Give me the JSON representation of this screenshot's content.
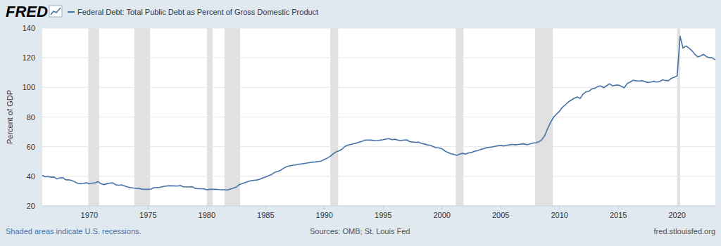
{
  "chart_data": {
    "type": "line",
    "logo": "FRED",
    "ylabel": "Percent of GDP",
    "footnote": "Shaded areas indicate U.S. recessions.",
    "source": "Sources: OMB; St. Louis Fed",
    "credit": "fred.stlouisfed.org",
    "legend": "top",
    "grid": true,
    "xlim": [
      1966,
      2023.25
    ],
    "xticks": [
      1970,
      1975,
      1980,
      1985,
      1990,
      1995,
      2000,
      2005,
      2010,
      2015,
      2020
    ],
    "ylim": [
      20,
      140
    ],
    "yticks": [
      20,
      40,
      60,
      80,
      100,
      120,
      140
    ],
    "recessions": [
      [
        1969.92,
        1970.83
      ],
      [
        1973.83,
        1975.17
      ],
      [
        1980.0,
        1980.5
      ],
      [
        1981.5,
        1982.83
      ],
      [
        1990.5,
        1991.17
      ],
      [
        2001.17,
        2001.83
      ],
      [
        2007.92,
        2009.42
      ],
      [
        2020.0,
        2020.25
      ]
    ],
    "x": [
      1966,
      1966.25,
      1966.5,
      1966.75,
      1967,
      1967.25,
      1967.5,
      1967.75,
      1968,
      1968.25,
      1968.5,
      1968.75,
      1969,
      1969.25,
      1969.5,
      1969.75,
      1970,
      1970.25,
      1970.5,
      1970.75,
      1971,
      1971.25,
      1971.5,
      1971.75,
      1972,
      1972.25,
      1972.5,
      1972.75,
      1973,
      1973.25,
      1973.5,
      1973.75,
      1974,
      1974.25,
      1974.5,
      1974.75,
      1975,
      1975.25,
      1975.5,
      1975.75,
      1976,
      1976.25,
      1976.5,
      1976.75,
      1977,
      1977.25,
      1977.5,
      1977.75,
      1978,
      1978.25,
      1978.5,
      1978.75,
      1979,
      1979.25,
      1979.5,
      1979.75,
      1980,
      1980.25,
      1980.5,
      1980.75,
      1981,
      1981.25,
      1981.5,
      1981.75,
      1982,
      1982.25,
      1982.5,
      1982.75,
      1983,
      1983.25,
      1983.5,
      1983.75,
      1984,
      1984.25,
      1984.5,
      1984.75,
      1985,
      1985.25,
      1985.5,
      1985.75,
      1986,
      1986.25,
      1986.5,
      1986.75,
      1987,
      1987.25,
      1987.5,
      1987.75,
      1988,
      1988.25,
      1988.5,
      1988.75,
      1989,
      1989.25,
      1989.5,
      1989.75,
      1990,
      1990.25,
      1990.5,
      1990.75,
      1991,
      1991.25,
      1991.5,
      1991.75,
      1992,
      1992.25,
      1992.5,
      1992.75,
      1993,
      1993.25,
      1993.5,
      1993.75,
      1994,
      1994.25,
      1994.5,
      1994.75,
      1995,
      1995.25,
      1995.5,
      1995.75,
      1996,
      1996.25,
      1996.5,
      1996.75,
      1997,
      1997.25,
      1997.5,
      1997.75,
      1998,
      1998.25,
      1998.5,
      1998.75,
      1999,
      1999.25,
      1999.5,
      1999.75,
      2000,
      2000.25,
      2000.5,
      2000.75,
      2001,
      2001.25,
      2001.5,
      2001.75,
      2002,
      2002.25,
      2002.5,
      2002.75,
      2003,
      2003.25,
      2003.5,
      2003.75,
      2004,
      2004.25,
      2004.5,
      2004.75,
      2005,
      2005.25,
      2005.5,
      2005.75,
      2006,
      2006.25,
      2006.5,
      2006.75,
      2007,
      2007.25,
      2007.5,
      2007.75,
      2008,
      2008.25,
      2008.5,
      2008.75,
      2009,
      2009.25,
      2009.5,
      2009.75,
      2010,
      2010.25,
      2010.5,
      2010.75,
      2011,
      2011.25,
      2011.5,
      2011.75,
      2012,
      2012.25,
      2012.5,
      2012.75,
      2013,
      2013.25,
      2013.5,
      2013.75,
      2014,
      2014.25,
      2014.5,
      2014.75,
      2015,
      2015.25,
      2015.5,
      2015.75,
      2016,
      2016.25,
      2016.5,
      2016.75,
      2017,
      2017.25,
      2017.5,
      2017.75,
      2018,
      2018.25,
      2018.5,
      2018.75,
      2019,
      2019.25,
      2019.5,
      2019.75,
      2020,
      2020.25,
      2020.5,
      2020.75,
      2021,
      2021.25,
      2021.5,
      2021.75,
      2022,
      2022.25,
      2022.5,
      2022.75,
      2023,
      2023.25
    ],
    "series": [
      {
        "name": "Federal Debt: Total Public Debt as Percent of Gross Domestic Product",
        "color": "#4572a7",
        "values": [
          40.6,
          39.7,
          39.8,
          39.4,
          39.5,
          38.2,
          39.0,
          39.1,
          37.6,
          37.7,
          37.2,
          36.3,
          35.3,
          35.0,
          35.2,
          35.6,
          34.9,
          35.4,
          35.6,
          36.4,
          34.9,
          34.4,
          35.0,
          35.4,
          35.6,
          34.3,
          34.0,
          34.2,
          33.5,
          32.8,
          32.4,
          32.1,
          31.9,
          31.8,
          31.3,
          31.2,
          31.2,
          31.4,
          32.3,
          32.4,
          32.6,
          33.0,
          33.4,
          33.6,
          33.6,
          33.5,
          33.4,
          33.8,
          32.9,
          32.8,
          32.8,
          33.0,
          31.9,
          31.6,
          31.6,
          31.5,
          30.9,
          31.2,
          31.2,
          31.3,
          31.0,
          30.9,
          30.9,
          30.8,
          31.4,
          32.0,
          32.8,
          34.4,
          35.1,
          35.8,
          36.5,
          37.0,
          37.3,
          37.5,
          38.0,
          38.9,
          39.6,
          40.4,
          41.2,
          42.6,
          43.2,
          44.0,
          45.3,
          46.4,
          47.0,
          47.4,
          47.6,
          48.1,
          48.3,
          48.6,
          48.9,
          49.3,
          49.6,
          49.7,
          50.0,
          50.4,
          51.4,
          52.3,
          53.5,
          55.2,
          56.5,
          57.2,
          58.3,
          60.2,
          61.0,
          61.5,
          62.0,
          62.5,
          63.2,
          63.8,
          64.5,
          64.5,
          64.4,
          64.1,
          64.2,
          64.4,
          64.7,
          65.2,
          65.4,
          64.7,
          65.0,
          64.5,
          64.0,
          64.5,
          64.6,
          63.4,
          63.1,
          62.9,
          63.0,
          62.2,
          61.8,
          61.2,
          60.9,
          60.1,
          59.4,
          59.1,
          58.6,
          57.0,
          56.2,
          55.2,
          54.8,
          54.1,
          55.0,
          55.5,
          55.0,
          55.8,
          56.0,
          56.9,
          57.2,
          58.0,
          58.5,
          59.2,
          59.5,
          59.8,
          60.2,
          60.6,
          60.8,
          60.5,
          60.9,
          61.2,
          61.5,
          61.2,
          61.5,
          61.8,
          61.8,
          61.3,
          61.9,
          62.5,
          62.7,
          63.3,
          64.8,
          67.6,
          72.5,
          76.6,
          80.0,
          82.1,
          84.0,
          86.6,
          88.3,
          90.1,
          91.5,
          92.7,
          93.5,
          92.5,
          95.5,
          97.0,
          97.4,
          99.0,
          99.4,
          100.6,
          101.0,
          99.8,
          101.1,
          102.5,
          101.0,
          101.5,
          101.6,
          100.8,
          99.7,
          102.6,
          103.6,
          104.8,
          104.5,
          104.3,
          104.5,
          103.9,
          103.3,
          103.6,
          104.0,
          103.6,
          103.9,
          105.0,
          104.7,
          104.5,
          106.1,
          106.8,
          107.8,
          134.5,
          126.5,
          128.0,
          126.5,
          124.8,
          122.4,
          120.6,
          121.3,
          122.3,
          120.7,
          120.0,
          119.9,
          118.6
        ]
      }
    ]
  }
}
